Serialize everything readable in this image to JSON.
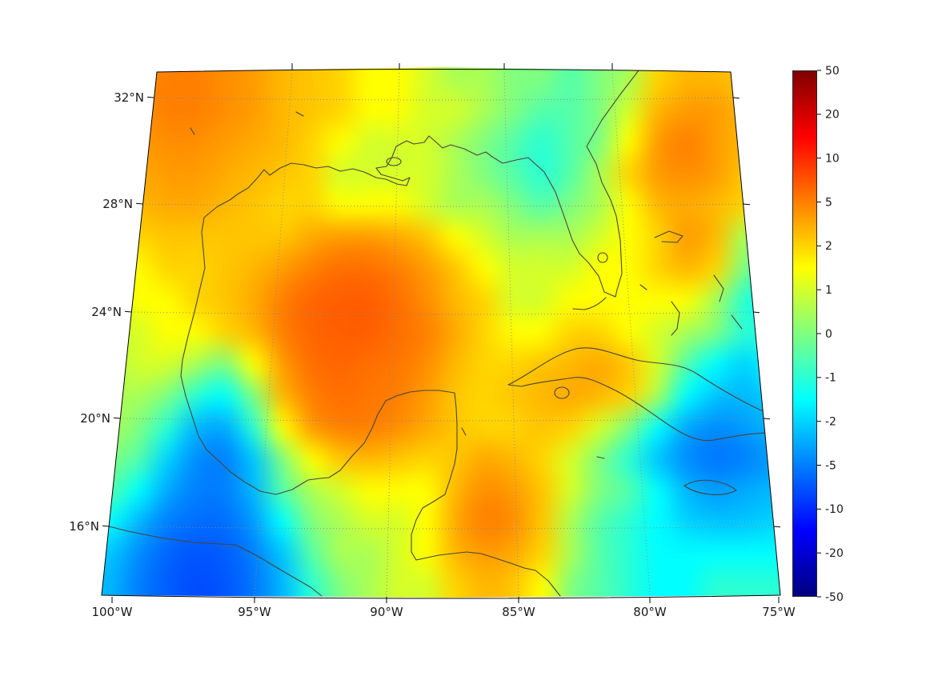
{
  "figure": {
    "background": "#ffffff"
  },
  "chart_data": {
    "type": "heatmap",
    "title": "",
    "xlabel": "",
    "ylabel": "",
    "x_axis": {
      "ticks": [
        "100°W",
        "95°W",
        "90°W",
        "85°W",
        "80°W",
        "75°W"
      ]
    },
    "y_axis": {
      "ticks": [
        "32°N",
        "28°N",
        "24°N",
        "20°N",
        "16°N"
      ]
    },
    "grid_lines": "dotted",
    "colorbar": {
      "position": "right",
      "tick_labels": [
        "50",
        "20",
        "10",
        "5",
        "2",
        "1",
        "0",
        "-1",
        "-2",
        "-5",
        "-10",
        "-20",
        "-50"
      ],
      "levels": [
        -50,
        -20,
        -10,
        -5,
        -2,
        -1,
        0,
        1,
        2,
        5,
        10,
        20,
        50
      ],
      "colormap": "jet",
      "colormap_stops": [
        [
          0.0,
          "#000080"
        ],
        [
          0.125,
          "#0000ff"
        ],
        [
          0.375,
          "#00ffff"
        ],
        [
          0.625,
          "#ffff00"
        ],
        [
          0.875,
          "#ff0000"
        ],
        [
          1.0,
          "#800000"
        ]
      ],
      "outline_color": "#262626"
    },
    "grid": {
      "cols": 24,
      "rows": 17,
      "values": [
        [
          4,
          4.5,
          5,
          5,
          4.5,
          4,
          3,
          2.5,
          2,
          1.5,
          1.5,
          1,
          0.5,
          0.5,
          0,
          0,
          -0.5,
          0,
          0.5,
          2,
          3,
          3,
          2.5,
          2
        ],
        [
          4,
          4.5,
          5,
          5,
          4.5,
          4,
          3,
          2.5,
          2,
          1.5,
          1.5,
          1,
          1,
          0.5,
          0,
          -0.5,
          -0.5,
          0,
          1,
          3,
          4,
          4,
          3,
          2
        ],
        [
          3.5,
          4,
          4.5,
          4.5,
          4,
          3.5,
          3,
          2,
          1.5,
          1,
          1,
          1,
          0.5,
          0,
          -0.5,
          -1,
          -0.5,
          0,
          1.5,
          4,
          5,
          4,
          3,
          2.5
        ],
        [
          3,
          3.5,
          4,
          4,
          3.5,
          3,
          2.5,
          2,
          1,
          1,
          1,
          1,
          0.5,
          0,
          -0.5,
          -1,
          -0.5,
          0.5,
          2,
          4,
          4.5,
          4,
          2.5,
          2
        ],
        [
          2.5,
          3,
          3.5,
          3.5,
          3,
          2.5,
          2,
          2,
          1.5,
          1.5,
          1.5,
          1,
          0.5,
          0.5,
          0,
          -0.5,
          0,
          0.5,
          1.5,
          3,
          3.5,
          3,
          2,
          1.5
        ],
        [
          2,
          2,
          2.5,
          2.5,
          2.5,
          2.5,
          2.5,
          3.5,
          4,
          4,
          3.5,
          2.5,
          1.5,
          1,
          0.5,
          0.5,
          0.5,
          1,
          1.5,
          2,
          4,
          3,
          0.5,
          0
        ],
        [
          1.5,
          1.5,
          2,
          2,
          2.5,
          3,
          4,
          5,
          6,
          6,
          5,
          4,
          2.5,
          1.5,
          1,
          1,
          1,
          1.5,
          1.5,
          2,
          3,
          2,
          0,
          -1
        ],
        [
          1,
          1.5,
          1.5,
          2,
          2.5,
          3.5,
          5,
          6.5,
          7,
          7,
          6,
          4.5,
          3,
          2,
          1,
          1,
          1.5,
          1.5,
          1.5,
          1.5,
          1.5,
          0.5,
          -1,
          -1.5
        ],
        [
          1,
          1,
          1.5,
          1.5,
          2,
          3,
          5,
          6.5,
          7,
          7,
          6,
          5,
          3.5,
          2,
          1.5,
          1.5,
          2,
          2,
          1.5,
          1,
          0.5,
          0,
          -1,
          -1
        ],
        [
          0.5,
          1,
          1,
          0.5,
          0,
          1.5,
          4,
          6,
          6.5,
          6,
          5.5,
          4.5,
          3,
          2,
          2,
          2.5,
          3,
          3.5,
          2.5,
          1,
          -0.5,
          -1.5,
          -2,
          -1.5
        ],
        [
          0.5,
          0.5,
          0,
          -1,
          -1.5,
          0,
          3,
          5,
          6,
          5.5,
          5,
          4,
          2.5,
          2,
          2.5,
          3,
          3.5,
          3,
          2,
          0.5,
          -1.5,
          -2.5,
          -3,
          -2
        ],
        [
          0.5,
          0,
          -1,
          -3,
          -3.5,
          -1,
          1.5,
          4,
          5,
          5,
          4.5,
          3.5,
          2.5,
          2,
          2,
          2.5,
          2,
          1,
          0,
          -1.5,
          -3.5,
          -4.5,
          -4,
          -3
        ],
        [
          0,
          -0.5,
          -2,
          -4.5,
          -5,
          -2.5,
          0,
          1.5,
          2.5,
          3,
          2.5,
          2,
          2.5,
          3.5,
          3,
          2,
          1,
          0,
          -1,
          -2.5,
          -4.5,
          -5.5,
          -5,
          -4
        ],
        [
          -0.5,
          -1.5,
          -3.5,
          -5,
          -5,
          -3,
          -0.5,
          0.5,
          1,
          1.5,
          1.5,
          1.5,
          3,
          4.5,
          4,
          2.5,
          1,
          0,
          -0.5,
          -1.5,
          -3,
          -4,
          -3.5,
          -3
        ],
        [
          -1.5,
          -3,
          -5,
          -6,
          -6,
          -4,
          -1.5,
          0,
          0.5,
          1,
          1,
          1.5,
          3.5,
          5,
          4.5,
          2.5,
          0.5,
          -0.5,
          -1,
          -1.5,
          -2,
          -2.5,
          -2.5,
          -2
        ],
        [
          -2.5,
          -4.5,
          -6.5,
          -7.5,
          -7,
          -5,
          -2.5,
          -0.5,
          0.5,
          0.5,
          1,
          1.5,
          3,
          4,
          3.5,
          2,
          0.5,
          -0.5,
          -1,
          -1.5,
          -1.5,
          -1.5,
          -1.5,
          -1.5
        ],
        [
          -3,
          -5,
          -7,
          -8,
          -7.5,
          -5.5,
          -3,
          -1,
          0,
          0.5,
          1,
          1,
          2,
          3,
          2.5,
          1.5,
          0,
          -0.5,
          -1,
          -1.5,
          -1.5,
          -1,
          -1,
          -1
        ]
      ]
    },
    "overlays": {
      "coastline_color": "#4a443a",
      "coastlines": [
        "M798,88 L775,118 L752,150 L733,183 L745,205 L752,228 L763,250 L770,270 L775,300 L777,342 L771,362 L769,371 L762,368 L755,365 L748,345 L735,328 L724,317 L715,300 L704,268 L694,240 L680,215 L660,197 L645,200 L628,204 L615,196 L607,190 L596,194 L580,186 L563,181 L553,185 L543,176 L536,170 L530,178 L517,180 L508,176 L495,183 L490,196 L483,208 L470,210 L476,218 L490,222 L503,226 L512,222 L508,232 L496,230 L482,224 L470,222 L455,215 L441,211 L425,214 L410,208 L395,210 L380,206 L364,204 L350,210 L337,219 L330,212 L322,222 L310,235 L298,242 L287,250 L272,258 L262,266 L255,272 L252,290 L254,312 L256,335 L250,360 L243,390 L235,420 L228,450 L226,470 L232,495 L240,520 L248,545 L258,562 L272,575 L288,590 L305,602 L325,614 L345,618 L365,612 L385,600 L400,598 L411,597 L425,588 L440,570 L455,554 L465,535 L472,518 L482,501 L495,495 L512,490 L530,488 L548,488 L568,491 L570,510 L571,530 L571,561 L568,580 L562,600 L556,618 L540,628 L528,635 L520,650 L514,668 L514,690 L520,700 L534,697 L548,694 L565,692 L583,690 L601,692 L620,698 L638,704 L655,710 L669,713 L685,726 L700,745",
        "M128,656 L160,664 L200,672 L240,678 L275,680 L294,681 L320,694 L350,712 L388,734 L402,745",
        "M757,372 Q745,384 730,387 L716,386",
        "M747,322 a6,6 0 1 0 12,0 a6,6 0 1 0 -12,0",
        "M483,202 a9,5 0 1 0 18,0 a9,5 0 1 0 -18,0",
        "M635,481 C660,469 688,446 713,438 C740,428 768,444 795,450 C822,456 848,452 872,468 C896,484 930,504 958,516 L985,522 L985,542 C950,538 915,546 892,550 C870,554 848,540 828,526 C808,512 788,498 769,488 C750,479 734,470 717,472 C698,475 668,478 652,483 Z",
        "M693,491 a9,7 0 1 0 18,0 a9,7 0 1 0 -18,0",
        "M855,607 q16,-9 35,-6 q20,3 30,12 q-14,7 -33,5 q-20,-2 -32,-11 z",
        "M577,535 l5,9",
        "M818,297 L836,289 L853,295 L846,303 L827,302",
        "M839,377 L849,391 L846,411 L839,419",
        "M892,344 L904,361 L899,377",
        "M914,394 L927,411",
        "M947,451 L961,459 L954,467",
        "M800,356 l8,6",
        "M746,571 l9,2",
        "M370,140 l9,5",
        "M238,160 l5,8"
      ]
    }
  }
}
